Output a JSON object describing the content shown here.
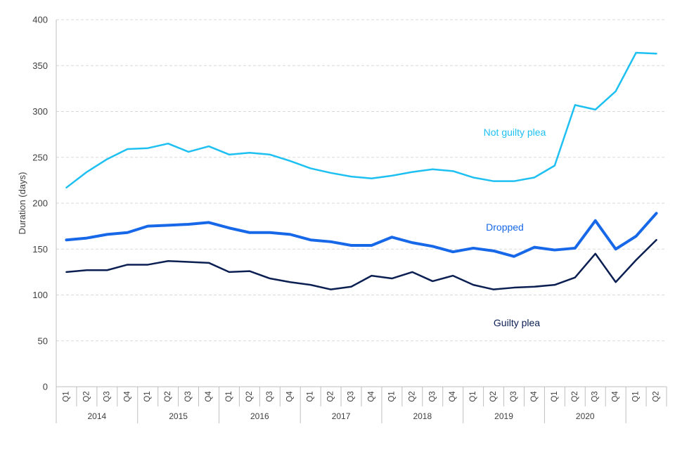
{
  "chart_data": {
    "type": "line",
    "title": "",
    "xlabel": "",
    "ylabel": "Duration (days)",
    "ylim": [
      0,
      400
    ],
    "yticks": [
      0,
      50,
      100,
      150,
      200,
      250,
      300,
      350,
      400
    ],
    "grid": true,
    "years": [
      "2014",
      "2015",
      "2016",
      "2017",
      "2018",
      "2019",
      "2020"
    ],
    "categories": [
      "Q1",
      "Q2",
      "Q3",
      "Q4",
      "Q1",
      "Q2",
      "Q3",
      "Q4",
      "Q1",
      "Q2",
      "Q3",
      "Q4",
      "Q1",
      "Q2",
      "Q3",
      "Q4",
      "Q1",
      "Q2",
      "Q3",
      "Q4",
      "Q1",
      "Q2",
      "Q3",
      "Q4",
      "Q1",
      "Q2",
      "Q3",
      "Q4",
      "Q1",
      "Q2"
    ],
    "series": [
      {
        "name": "Not guilty plea",
        "label": "Not guilty plea",
        "color": "#1ec0f2",
        "values": [
          217,
          234,
          248,
          259,
          260,
          265,
          256,
          262,
          253,
          255,
          253,
          246,
          238,
          233,
          229,
          227,
          230,
          234,
          237,
          235,
          228,
          224,
          224,
          228,
          241,
          307,
          302,
          322,
          364,
          363
        ]
      },
      {
        "name": "Dropped",
        "label": "Dropped",
        "color": "#1768e8",
        "values": [
          160,
          162,
          166,
          168,
          175,
          176,
          177,
          179,
          173,
          168,
          168,
          166,
          160,
          158,
          154,
          154,
          163,
          157,
          153,
          147,
          151,
          148,
          142,
          152,
          149,
          151,
          181,
          150,
          164,
          189
        ]
      },
      {
        "name": "Guilty plea",
        "label": "Guilty plea",
        "color": "#0b1f52",
        "values": [
          125,
          127,
          127,
          133,
          133,
          137,
          136,
          135,
          125,
          126,
          118,
          114,
          111,
          106,
          109,
          121,
          118,
          125,
          115,
          121,
          111,
          106,
          108,
          109,
          111,
          119,
          145,
          114,
          138,
          160
        ]
      }
    ]
  }
}
